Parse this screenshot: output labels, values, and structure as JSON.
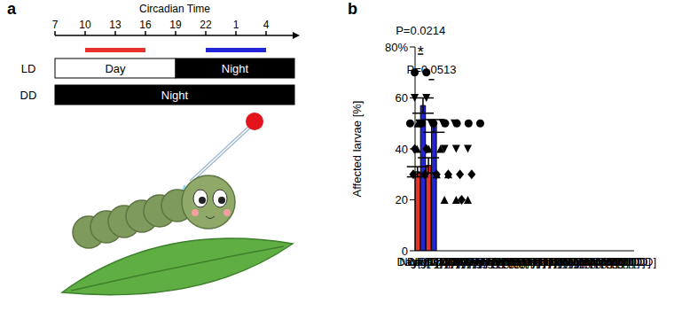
{
  "diagram": {
    "panel_label": "a",
    "axis_title": "Circadian Time",
    "ticks": [
      7,
      10,
      13,
      16,
      19,
      22,
      1,
      4
    ],
    "windows": [
      {
        "from": 10,
        "to": 16,
        "color": "#e8322b"
      },
      {
        "from": 22,
        "to": 4,
        "color": "#2424d8"
      }
    ],
    "rows": [
      {
        "label": "LD",
        "segments": [
          {
            "text": "Day",
            "start": 7,
            "color": "white"
          },
          {
            "text": "Night",
            "start": 19,
            "color": "black"
          }
        ]
      },
      {
        "label": "DD",
        "segments": [
          {
            "text": "Night",
            "start": 7,
            "color": "black"
          }
        ]
      }
    ]
  },
  "chart_data": {
    "type": "bar",
    "panel_label": "b",
    "y_label": "Affected larvae [%]",
    "categories": [
      "Day[LD]",
      "Night[LD]",
      "Day[DD]",
      "Night[DD]"
    ],
    "values": [
      31,
      57,
      33.5,
      49
    ],
    "errors": [
      2,
      3,
      3,
      2.5
    ],
    "colors": [
      "#e8322b",
      "#2424d8",
      "#e8322b",
      "#2424d8"
    ],
    "ylim": [
      0,
      80
    ],
    "yticks": [
      0,
      20,
      40,
      60,
      {
        "value": 80,
        "label": "80%"
      }
    ],
    "grid": false,
    "points": [
      {
        "marker": "diamond",
        "values": [
          40,
          40,
          30,
          30,
          30,
          30,
          30,
          30,
          20
        ]
      },
      {
        "marker": "circle",
        "values": [
          70,
          70,
          50,
          50,
          50,
          50,
          50,
          50,
          50
        ]
      },
      {
        "marker": "triangle",
        "values": [
          50,
          40,
          40,
          40,
          30,
          30,
          20,
          20,
          20
        ]
      },
      {
        "marker": "triangle-down",
        "values": [
          60,
          60,
          50,
          50,
          50,
          50,
          40,
          40,
          40
        ]
      }
    ],
    "annotations": [
      {
        "text": "P=0.0214",
        "from": 0,
        "to": 1,
        "significance": "*"
      },
      {
        "text": "P=0.0513",
        "from": 2,
        "to": 3
      }
    ]
  }
}
